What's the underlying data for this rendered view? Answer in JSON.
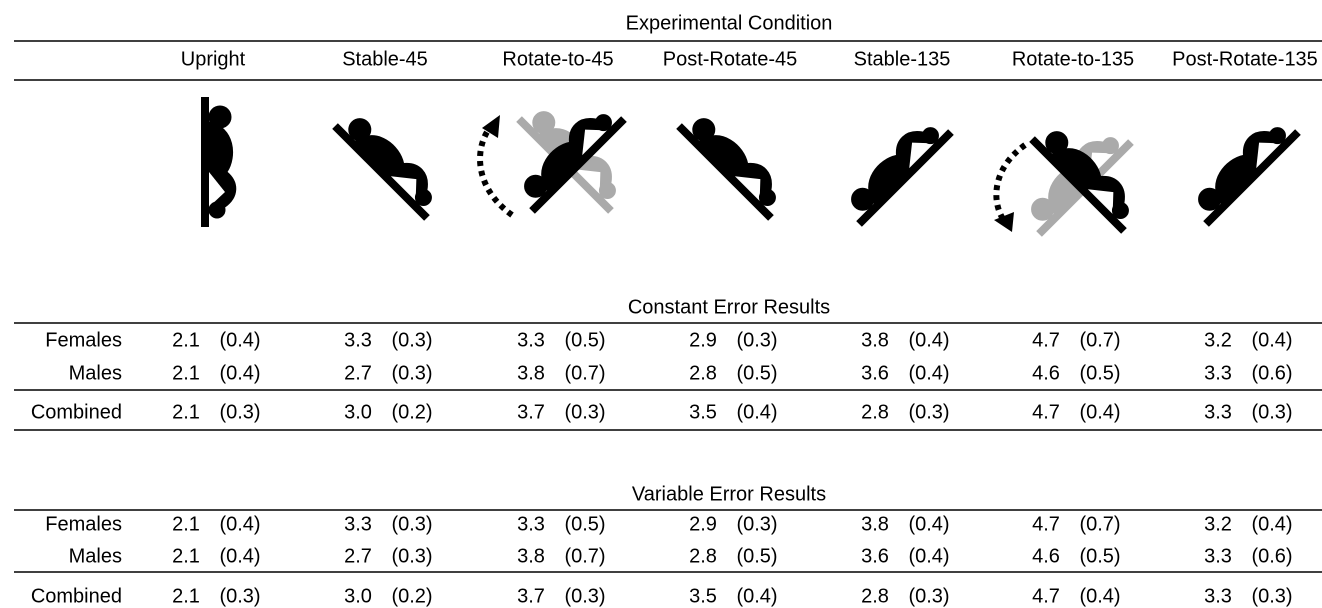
{
  "header": {
    "title": "Experimental Condition",
    "columns": [
      "Upright",
      "Stable-45",
      "Rotate-to-45",
      "Post-Rotate-45",
      "Stable-135",
      "Rotate-to-135",
      "Post-Rotate-135"
    ]
  },
  "sections": [
    {
      "title": "Constant Error Results",
      "rows": [
        {
          "label": "Females",
          "cells": [
            [
              "2.1",
              "(0.4)"
            ],
            [
              "3.3",
              "(0.3)"
            ],
            [
              "3.3",
              "(0.5)"
            ],
            [
              "2.9",
              "(0.3)"
            ],
            [
              "3.8",
              "(0.4)"
            ],
            [
              "4.7",
              "(0.7)"
            ],
            [
              "3.2",
              "(0.4)"
            ]
          ]
        },
        {
          "label": "Males",
          "cells": [
            [
              "2.1",
              "(0.4)"
            ],
            [
              "2.7",
              "(0.3)"
            ],
            [
              "3.8",
              "(0.7)"
            ],
            [
              "2.8",
              "(0.5)"
            ],
            [
              "3.6",
              "(0.4)"
            ],
            [
              "4.6",
              "(0.5)"
            ],
            [
              "3.3",
              "(0.6)"
            ]
          ]
        },
        {
          "label": "Combined",
          "cells": [
            [
              "2.1",
              "(0.3)"
            ],
            [
              "3.0",
              "(0.2)"
            ],
            [
              "3.7",
              "(0.3)"
            ],
            [
              "3.5",
              "(0.4)"
            ],
            [
              "2.8",
              "(0.3)"
            ],
            [
              "4.7",
              "(0.4)"
            ],
            [
              "3.3",
              "(0.3)"
            ]
          ]
        }
      ]
    },
    {
      "title": "Variable Error Results",
      "rows": [
        {
          "label": "Females",
          "cells": [
            [
              "2.1",
              "(0.4)"
            ],
            [
              "3.3",
              "(0.3)"
            ],
            [
              "3.3",
              "(0.5)"
            ],
            [
              "2.9",
              "(0.3)"
            ],
            [
              "3.8",
              "(0.4)"
            ],
            [
              "4.7",
              "(0.7)"
            ],
            [
              "3.2",
              "(0.4)"
            ]
          ]
        },
        {
          "label": "Males",
          "cells": [
            [
              "2.1",
              "(0.4)"
            ],
            [
              "2.7",
              "(0.3)"
            ],
            [
              "3.8",
              "(0.7)"
            ],
            [
              "2.8",
              "(0.5)"
            ],
            [
              "3.6",
              "(0.4)"
            ],
            [
              "4.6",
              "(0.5)"
            ],
            [
              "3.3",
              "(0.6)"
            ]
          ]
        },
        {
          "label": "Combined",
          "cells": [
            [
              "2.1",
              "(0.3)"
            ],
            [
              "3.0",
              "(0.2)"
            ],
            [
              "3.7",
              "(0.3)"
            ],
            [
              "3.5",
              "(0.4)"
            ],
            [
              "2.8",
              "(0.3)"
            ],
            [
              "4.7",
              "(0.4)"
            ],
            [
              "3.3",
              "(0.3)"
            ]
          ]
        }
      ]
    }
  ]
}
